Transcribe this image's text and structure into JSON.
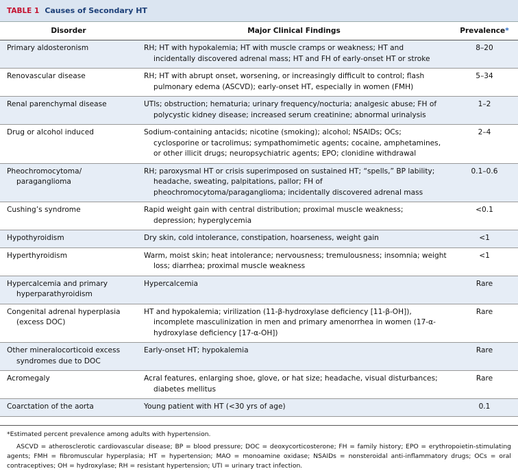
{
  "header": {
    "label": "TABLE 1",
    "title": "Causes of Secondary HT"
  },
  "table": {
    "columns": [
      "Disorder",
      "Major Clinical Findings",
      "Prevalence"
    ],
    "prevalence_marker": "*",
    "rows": [
      [
        "Primary aldosteronism",
        "RH; HT with hypokalemia; HT with muscle cramps or weakness; HT and incidentally discovered adrenal mass; HT and FH of early-onset HT or stroke",
        "8–20"
      ],
      [
        "Renovascular disease",
        "RH; HT with abrupt onset, worsening, or increasingly difficult to control; flash pulmonary edema (ASCVD); early-onset HT, especially in women (FMH)",
        "5–34"
      ],
      [
        "Renal parenchymal disease",
        "UTIs; obstruction; hematuria; urinary frequency/nocturia; analgesic abuse; FH of polycystic kidney disease; increased serum creatinine; abnormal urinalysis",
        "1–2"
      ],
      [
        "Drug or alcohol induced",
        "Sodium-containing antacids; nicotine (smoking); alcohol; NSAIDs; OCs; cyclosporine or tacrolimus; sympathomimetic agents; cocaine, amphetamines, or other illicit drugs; neuropsychiatric agents; EPO; clonidine withdrawal",
        "2–4"
      ],
      [
        "Pheochromocytoma/ paraganglioma",
        "RH; paroxysmal HT or crisis superimposed on sustained HT; “spells,” BP lability; headache, sweating, palpitations, pallor; FH of pheochromocytoma/paraganglioma; incidentally discovered adrenal mass",
        "0.1–0.6"
      ],
      [
        "Cushing’s syndrome",
        "Rapid weight gain with central distribution; proximal muscle weakness; depression; hyperglycemia",
        "<0.1"
      ],
      [
        "Hypothyroidism",
        "Dry skin, cold intolerance, constipation, hoarseness, weight gain",
        "<1"
      ],
      [
        "Hyperthyroidism",
        "Warm, moist skin; heat intolerance; nervousness; tremulousness; insomnia; weight loss; diarrhea; proximal muscle weakness",
        "<1"
      ],
      [
        "Hypercalcemia and primary hyperparathyroidism",
        "Hypercalcemia",
        "Rare"
      ],
      [
        "Congenital adrenal hyperplasia (excess DOC)",
        "HT and hypokalemia; virilization (11-β-hydroxylase deficiency [11-β-OH]), incomplete masculinization in men and primary amenorrhea in women (17-α-hydroxylase deficiency [17-α-OH])",
        "Rare"
      ],
      [
        "Other mineralocorticoid excess syndromes due to DOC",
        "Early-onset HT; hypokalemia",
        "Rare"
      ],
      [
        "Acromegaly",
        "Acral features, enlarging shoe, glove, or hat size; headache, visual disturbances; diabetes mellitus",
        "Rare"
      ],
      [
        "Coarctation of the aorta",
        "Young patient with HT (<30 yrs of age)",
        "0.1"
      ]
    ]
  },
  "footnotes": [
    "*Estimated percent prevalence among adults with hypertension.",
    "ASCVD = atherosclerotic cardiovascular disease; BP = blood pressure; DOC = deoxycorticosterone; FH = family history; EPO = erythropoietin-stimulating agents; FMH = fibromuscular hyperplasia; HT = hypertension; MAO = monoamine oxidase; NSAIDs = nonsteroidal anti-inflammatory drugs; OCs = oral contraceptives; OH = hydroxylase; RH = resistant hypertension; UTI = urinary tract infection."
  ]
}
